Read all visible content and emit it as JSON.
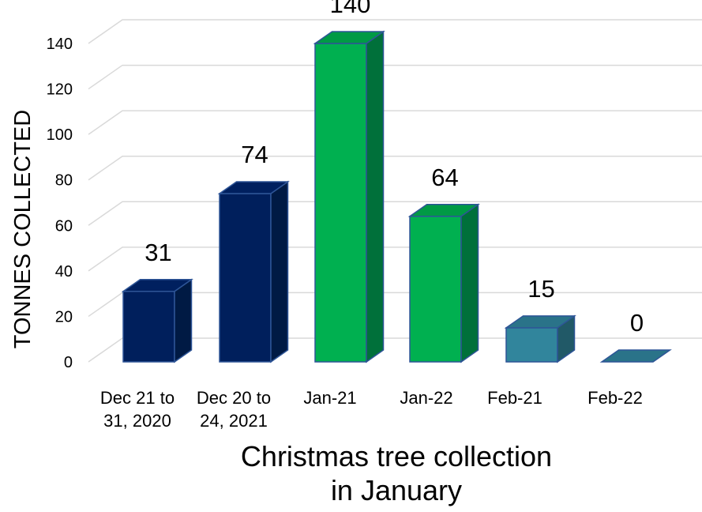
{
  "chart_data": {
    "type": "bar",
    "categories": [
      [
        "Dec 21 to",
        "31, 2020"
      ],
      [
        "Dec 20 to",
        "24, 2021"
      ],
      [
        "Jan-21"
      ],
      [
        "Jan-22"
      ],
      [
        "Feb-21"
      ],
      [
        "Feb-22"
      ]
    ],
    "values": [
      31,
      74,
      140,
      64,
      15,
      0
    ],
    "data_labels": [
      "31",
      "74",
      "140",
      "64",
      "15",
      "0"
    ],
    "ylabel": "TONNES COLLECTED",
    "xlabel": [
      "Christmas tree collection",
      "in January"
    ],
    "ylim": [
      0,
      140
    ],
    "yticks": [
      0,
      20,
      40,
      60,
      80,
      100,
      120,
      140
    ],
    "grid": true,
    "bar_colors": [
      "#001f5c",
      "#001f5c",
      "#00b050",
      "#00b050",
      "#31859c",
      "#31859c"
    ],
    "bar_side_colors": [
      "#001a44",
      "#001a44",
      "#00703a",
      "#00703a",
      "#215967",
      "#215967"
    ],
    "bar_top_colors": [
      "#00205f",
      "#00205f",
      "#009a45",
      "#009a45",
      "#2a7389",
      "#2a7389"
    ]
  }
}
